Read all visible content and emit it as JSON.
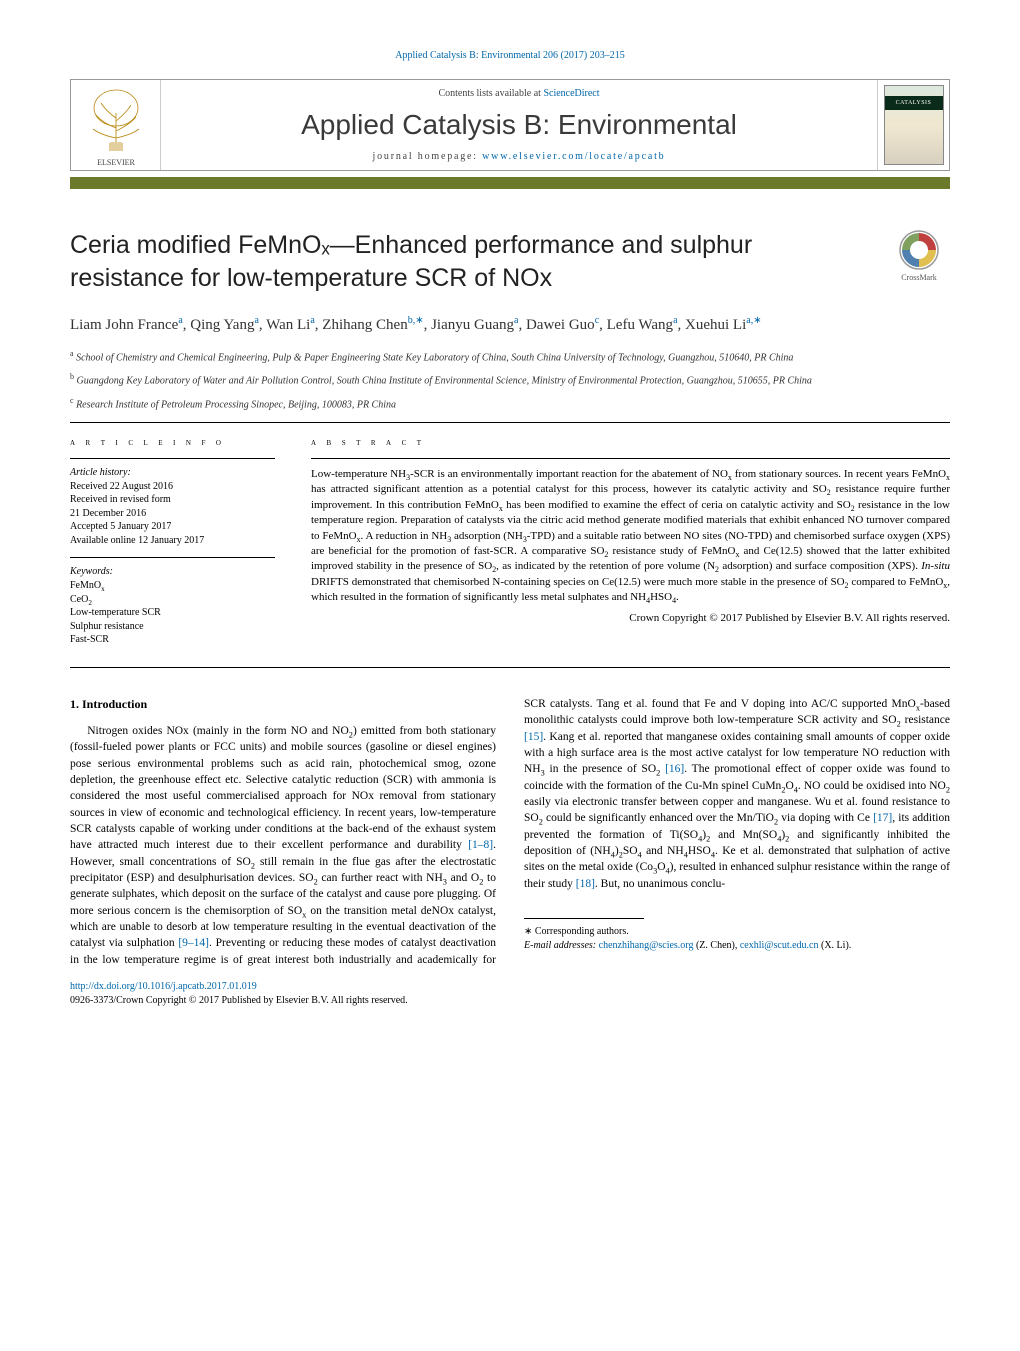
{
  "journalRef": "Applied Catalysis B: Environmental 206 (2017) 203–215",
  "contentsLine": {
    "prefix": "Contents lists available at ",
    "linkText": "ScienceDirect"
  },
  "journalName": "Applied Catalysis B: Environmental",
  "homepage": {
    "label": "journal homepage: ",
    "url": "www.elsevier.com/locate/apcatb"
  },
  "coverBand": "CATALYSIS",
  "crossmarkLabel": "CrossMark",
  "title": "Ceria modified FeMnOₓ—Enhanced performance and sulphur resistance for low-temperature SCR of NOx",
  "authors": [
    {
      "name": "Liam John France",
      "aff": "a"
    },
    {
      "name": "Qing Yang",
      "aff": "a"
    },
    {
      "name": "Wan Li",
      "aff": "a"
    },
    {
      "name": "Zhihang Chen",
      "aff": "b,∗"
    },
    {
      "name": "Jianyu Guang",
      "aff": "a"
    },
    {
      "name": "Dawei Guo",
      "aff": "c"
    },
    {
      "name": "Lefu Wang",
      "aff": "a"
    },
    {
      "name": "Xuehui Li",
      "aff": "a,∗"
    }
  ],
  "affiliations": [
    {
      "lbl": "a",
      "text": "School of Chemistry and Chemical Engineering, Pulp & Paper Engineering State Key Laboratory of China, South China University of Technology, Guangzhou, 510640, PR China"
    },
    {
      "lbl": "b",
      "text": "Guangdong Key Laboratory of Water and Air Pollution Control, South China Institute of Environmental Science, Ministry of Environmental Protection, Guangzhou, 510655, PR China"
    },
    {
      "lbl": "c",
      "text": "Research Institute of Petroleum Processing Sinopec, Beijing, 100083, PR China"
    }
  ],
  "articleInfoLabel": "a r t i c l e   i n f o",
  "abstractLabel": "a b s t r a c t",
  "history": {
    "title": "Article history:",
    "lines": [
      "Received 22 August 2016",
      "Received in revised form",
      "21 December 2016",
      "Accepted 5 January 2017",
      "Available online 12 January 2017"
    ]
  },
  "keywordsTitle": "Keywords:",
  "keywords": [
    "FeMnOₓ",
    "CeO₂",
    "Low-temperature SCR",
    "Sulphur resistance",
    "Fast-SCR"
  ],
  "abstract": "Low-temperature NH₃-SCR is an environmentally important reaction for the abatement of NOₓ from stationary sources. In recent years FeMnOₓ has attracted significant attention as a potential catalyst for this process, however its catalytic activity and SO₂ resistance require further improvement. In this contribution FeMnOₓ has been modified to examine the effect of ceria on catalytic activity and SO₂ resistance in the low temperature region. Preparation of catalysts via the citric acid method generate modified materials that exhibit enhanced NO turnover compared to FeMnOₓ. A reduction in NH₃ adsorption (NH₃-TPD) and a suitable ratio between NO sites (NO-TPD) and chemisorbed surface oxygen (XPS) are beneficial for the promotion of fast-SCR. A comparative SO₂ resistance study of FeMnOₓ and Ce(12.5) showed that the latter exhibited improved stability in the presence of SO₂, as indicated by the retention of pore volume (N₂ adsorption) and surface composition (XPS). In-situ DRIFTS demonstrated that chemisorbed N-containing species on Ce(12.5) were much more stable in the presence of SO₂ compared to FeMnOₓ, which resulted in the formation of significantly less metal sulphates and NH₄HSO₄.",
  "abstractCopyright": "Crown Copyright © 2017 Published by Elsevier B.V. All rights reserved.",
  "introTitle": "1.  Introduction",
  "introParas": [
    "Nitrogen oxides NOx (mainly in the form NO and NO₂) emitted from both stationary (fossil-fueled power plants or FCC units) and mobile sources (gasoline or diesel engines) pose serious environmental problems such as acid rain, photochemical smog, ozone depletion, the greenhouse effect etc. Selective catalytic reduction (SCR) with ammonia is considered the most useful commercialised approach for NOx removal from stationary sources in view of economic and technological efficiency. In recent years, low-temperature SCR catalysts capable of working under conditions at the back-end of the exhaust system have attracted much interest due to their excellent performance and durability [1–8]. However, small concentrations of SO₂ still remain in the flue gas after the electrostatic precipitator (ESP) and desulphurisation devices. SO₂ can further react with NH₃ and O₂ to generate sulphates, which deposit on the surface of the catalyst and cause pore plugging. Of more serious concern is the chemisorption of SOₓ on the transition metal deNOx catalyst, which are unable to desorb at low temperature resulting in the eventual deactivation of the catalyst via sulphation [9–14]. Preventing or reducing these modes of catalyst deactivation in the low temperature regime is of great interest both industrially and academically for SCR catalysts. Tang et al. found that Fe and V doping into AC/C supported MnOₓ-based monolithic catalysts could improve both low-temperature SCR activity and SO₂ resistance [15]. Kang et al. reported that manganese oxides containing small amounts of copper oxide with a high surface area is the most active catalyst for low temperature NO reduction with NH₃ in the presence of SO₂ [16]. The promotional effect of copper oxide was found to coincide with the formation of the Cu-Mn spinel CuMn₂O₄. NO could be oxidised into NO₂ easily via electronic transfer between copper and manganese. Wu et al. found resistance to SO₂ could be significantly enhanced over the Mn/TiO₂ via doping with Ce [17], its addition prevented the formation of Ti(SO₄)₂ and Mn(SO₄)₂ and significantly inhibited the deposition of (NH₄)₂SO₄ and NH₄HSO₄. Ke et al. demonstrated that sulphation of active sites on the metal oxide (Co₃O₄), resulted in enhanced sulphur resistance within the range of their study [18]. But, no unanimous conclu-"
  ],
  "corr": {
    "label": "∗ Corresponding authors.",
    "emailLabel": "E-mail addresses: ",
    "emails": [
      {
        "addr": "chenzhihang@scies.org",
        "who": "(Z. Chen)"
      },
      {
        "addr": "cexhli@scut.edu.cn",
        "who": "(X. Li)"
      }
    ]
  },
  "doi": {
    "url": "http://dx.doi.org/10.1016/j.apcatb.2017.01.019"
  },
  "issnLine": "0926-3373/Crown Copyright © 2017 Published by Elsevier B.V. All rights reserved.",
  "refColor": "#0066aa",
  "accentBar": "#6b7a2a"
}
